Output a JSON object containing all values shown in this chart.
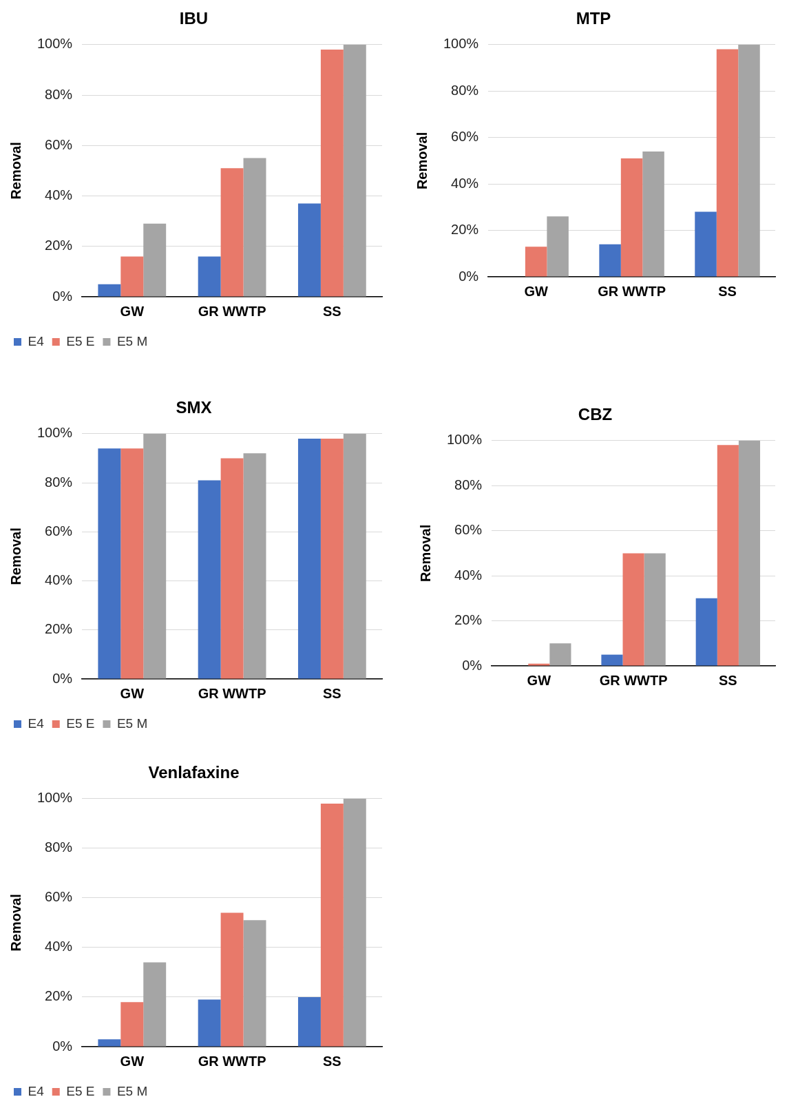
{
  "chart_data": [
    {
      "type": "bar",
      "title": "IBU",
      "ylabel": "Removal",
      "categories": [
        "GW",
        "GR WWTP",
        "SS"
      ],
      "series": [
        {
          "name": "E4",
          "color": "#4472c4",
          "values": [
            5,
            16,
            37
          ]
        },
        {
          "name": "E5 E",
          "color": "#e8796a",
          "values": [
            16,
            51,
            98
          ]
        },
        {
          "name": "E5 M",
          "color": "#a5a5a5",
          "values": [
            29,
            55,
            100
          ]
        }
      ],
      "ylim": [
        0,
        100
      ],
      "yticks": [
        {
          "value": 0,
          "label": "0%"
        },
        {
          "value": 20,
          "label": "20%"
        },
        {
          "value": 40,
          "label": "40%"
        },
        {
          "value": 60,
          "label": "60%"
        },
        {
          "value": 80,
          "label": "80%"
        },
        {
          "value": 100,
          "label": "100%"
        }
      ],
      "grid": "y",
      "legend": "bottom left"
    },
    {
      "type": "bar",
      "title": "MTP",
      "ylabel": "Removal",
      "categories": [
        "GW",
        "GR WWTP",
        "SS"
      ],
      "series": [
        {
          "color": "#4472c4",
          "values": [
            0,
            14,
            28
          ]
        },
        {
          "color": "#e8796a",
          "values": [
            13,
            51,
            98
          ]
        },
        {
          "color": "#a5a5a5",
          "values": [
            26,
            54,
            100
          ]
        }
      ],
      "ylim": [
        0,
        100
      ],
      "yticks": [
        {
          "value": 0,
          "label": "0%"
        },
        {
          "value": 20,
          "label": "20%"
        },
        {
          "value": 40,
          "label": "40%"
        },
        {
          "value": 60,
          "label": "60%"
        },
        {
          "value": 80,
          "label": "80%"
        },
        {
          "value": 100,
          "label": "100%"
        }
      ],
      "grid": "y"
    },
    {
      "type": "bar",
      "title": "SMX",
      "ylabel": "Removal",
      "categories": [
        "GW",
        "GR WWTP",
        "SS"
      ],
      "series": [
        {
          "name": "E4",
          "color": "#4472c4",
          "values": [
            94,
            81,
            98
          ]
        },
        {
          "name": "E5 E",
          "color": "#e8796a",
          "values": [
            94,
            90,
            98
          ]
        },
        {
          "name": "E5 M",
          "color": "#a5a5a5",
          "values": [
            100,
            92,
            100
          ]
        }
      ],
      "ylim": [
        0,
        100
      ],
      "yticks": [
        {
          "value": 0,
          "label": "0%"
        },
        {
          "value": 20,
          "label": "20%"
        },
        {
          "value": 40,
          "label": "40%"
        },
        {
          "value": 60,
          "label": "60%"
        },
        {
          "value": 80,
          "label": "80%"
        },
        {
          "value": 100,
          "label": "100%"
        }
      ],
      "grid": "y",
      "legend": "bottom left"
    },
    {
      "type": "bar",
      "title": "CBZ",
      "ylabel": "Removal",
      "categories": [
        "GW",
        "GR WWTP",
        "SS"
      ],
      "series": [
        {
          "color": "#4472c4",
          "values": [
            0,
            5,
            30
          ]
        },
        {
          "color": "#e8796a",
          "values": [
            1,
            50,
            98
          ]
        },
        {
          "color": "#a5a5a5",
          "values": [
            10,
            50,
            100
          ]
        }
      ],
      "ylim": [
        0,
        100
      ],
      "yticks": [
        {
          "value": 0,
          "label": "0%"
        },
        {
          "value": 20,
          "label": "20%"
        },
        {
          "value": 40,
          "label": "40%"
        },
        {
          "value": 60,
          "label": "60%"
        },
        {
          "value": 80,
          "label": "80%"
        },
        {
          "value": 100,
          "label": "100%"
        }
      ],
      "grid": "y"
    },
    {
      "type": "bar",
      "title": "Venlafaxine",
      "ylabel": "Removal",
      "categories": [
        "GW",
        "GR WWTP",
        "SS"
      ],
      "series": [
        {
          "name": "E4",
          "color": "#4472c4",
          "values": [
            3,
            19,
            20
          ]
        },
        {
          "name": "E5 E",
          "color": "#e8796a",
          "values": [
            18,
            54,
            98
          ]
        },
        {
          "name": "E5 M",
          "color": "#a5a5a5",
          "values": [
            34,
            51,
            100
          ]
        }
      ],
      "ylim": [
        0,
        100
      ],
      "yticks": [
        {
          "value": 0,
          "label": "0%"
        },
        {
          "value": 20,
          "label": "20%"
        },
        {
          "value": 40,
          "label": "40%"
        },
        {
          "value": 60,
          "label": "60%"
        },
        {
          "value": 80,
          "label": "80%"
        },
        {
          "value": 100,
          "label": "100%"
        }
      ],
      "grid": "y",
      "legend": "bottom left"
    }
  ]
}
